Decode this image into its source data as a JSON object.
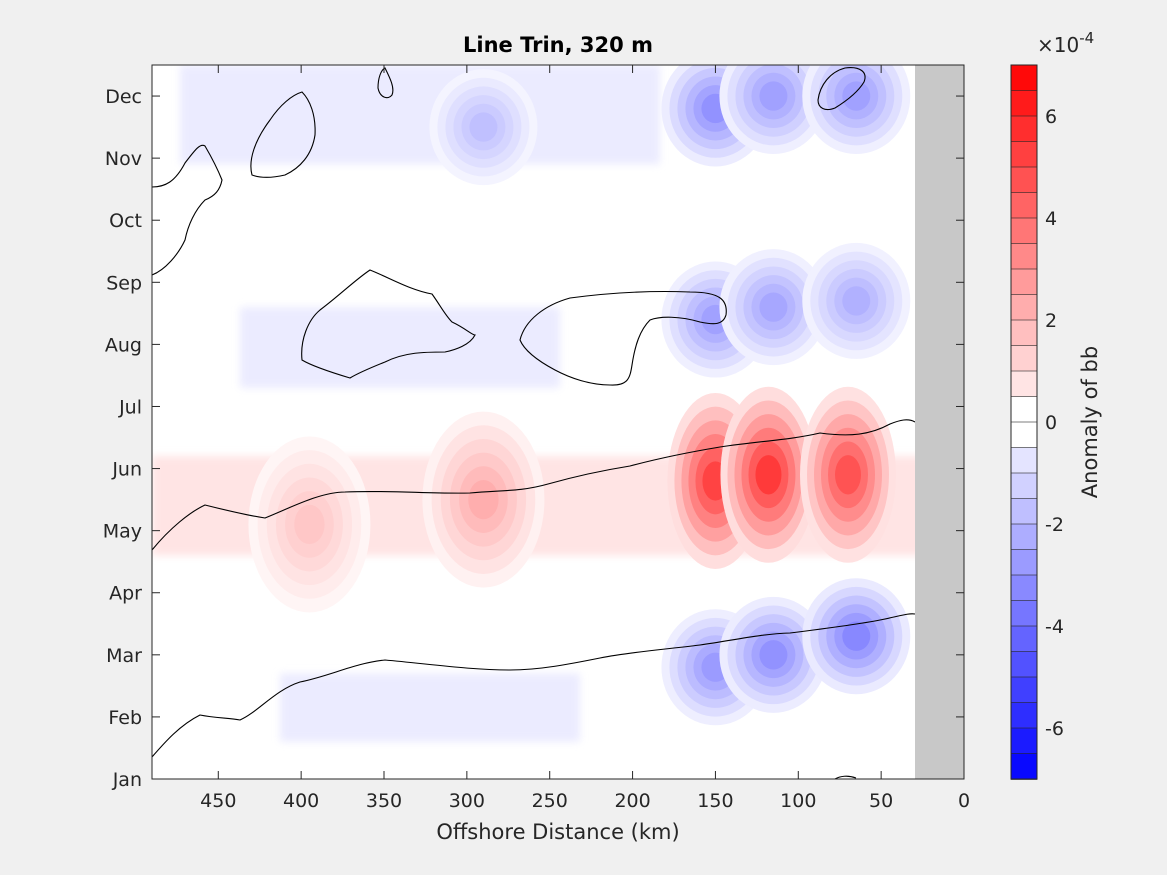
{
  "chart_data": {
    "type": "heatmap",
    "title": "Line Trin, 320 m",
    "xlabel": "Offshore Distance (km)",
    "ylabel": "",
    "x_reversed": true,
    "xlim": [
      0,
      490
    ],
    "x_ticks": [
      450,
      400,
      350,
      300,
      250,
      200,
      150,
      100,
      50,
      0
    ],
    "y_ticks": [
      "Jan",
      "Feb",
      "Mar",
      "Apr",
      "May",
      "Jun",
      "Jul",
      "Aug",
      "Sep",
      "Oct",
      "Nov",
      "Dec"
    ],
    "masked_region_km": [
      0,
      30
    ],
    "masked_color": "#c8c8c8",
    "colorbar": {
      "label": "Anomaly of bb",
      "exponent_label": "×10",
      "exponent_power": "-4",
      "range": [
        -7,
        7
      ],
      "levels": 28,
      "ticks": [
        "6",
        "4",
        "2",
        "0",
        "-2",
        "-4",
        "-6"
      ],
      "tick_values": [
        6,
        4,
        2,
        0,
        -2,
        -4,
        -6
      ],
      "low_color": "#0000ff",
      "high_color": "#ff0000",
      "mid_color": "#ffffff"
    },
    "anomaly_features": [
      {
        "sign": "positive",
        "x_km": 150,
        "month": 4.8,
        "peak": 6.0
      },
      {
        "sign": "positive",
        "x_km": 118,
        "month": 4.9,
        "peak": 6.3
      },
      {
        "sign": "positive",
        "x_km": 70,
        "month": 4.9,
        "peak": 5.5
      },
      {
        "sign": "positive",
        "x_km": 290,
        "month": 4.5,
        "peak": 2.6
      },
      {
        "sign": "positive",
        "x_km": 395,
        "month": 4.1,
        "peak": 1.8
      },
      {
        "sign": "negative",
        "x_km": 150,
        "month": 1.8,
        "peak": -3.2
      },
      {
        "sign": "negative",
        "x_km": 115,
        "month": 2.0,
        "peak": -3.5
      },
      {
        "sign": "negative",
        "x_km": 65,
        "month": 2.3,
        "peak": -3.8
      },
      {
        "sign": "negative",
        "x_km": 150,
        "month": 10.8,
        "peak": -3.5
      },
      {
        "sign": "negative",
        "x_km": 115,
        "month": 11.0,
        "peak": -3.0
      },
      {
        "sign": "negative",
        "x_km": 65,
        "month": 11.0,
        "peak": -3.0
      },
      {
        "sign": "negative",
        "x_km": 150,
        "month": 7.4,
        "peak": -3.0
      },
      {
        "sign": "negative",
        "x_km": 115,
        "month": 7.6,
        "peak": -2.8
      },
      {
        "sign": "negative",
        "x_km": 65,
        "month": 7.7,
        "peak": -2.5
      },
      {
        "sign": "negative",
        "x_km": 290,
        "month": 10.5,
        "peak": -2.0
      }
    ]
  }
}
